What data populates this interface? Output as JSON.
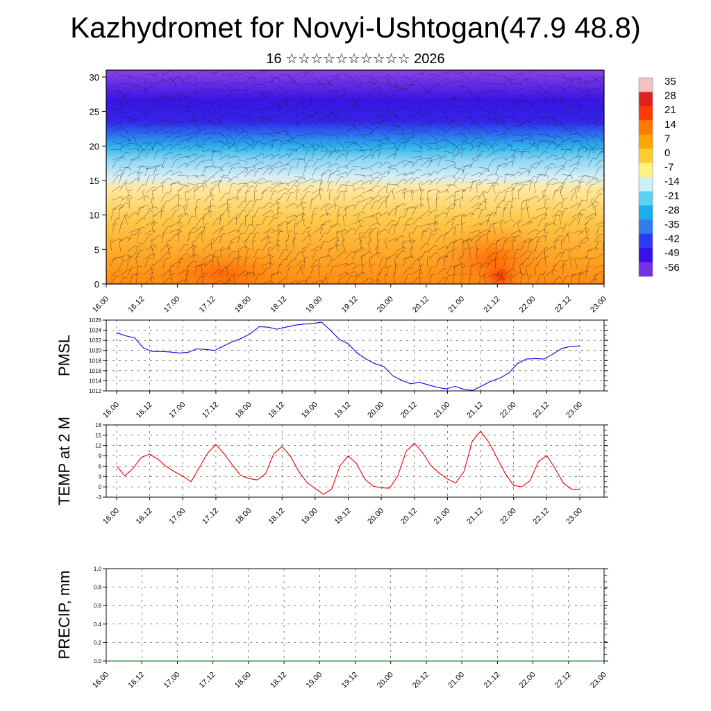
{
  "title": "Kazhydromet for Novyi-Ushtogan(47.9 48.8)",
  "subtitle": "16 ☆☆☆☆☆☆☆☆☆☆ 2026",
  "chart_data": [
    {
      "type": "heatmap",
      "name": "temperature-wind-cross-section",
      "x_tick_labels": [
        "16.00",
        "16.12",
        "17.00",
        "17.12",
        "18.00",
        "18.12",
        "19.00",
        "19.12",
        "20.00",
        "20.12",
        "21.00",
        "21.12",
        "22.00",
        "22.12",
        "23.00"
      ],
      "y_ticks": [
        0,
        5,
        10,
        15,
        20,
        25,
        30
      ],
      "ylim": [
        0,
        31
      ],
      "colorbar_labels": [
        "35",
        "28",
        "21",
        "14",
        "7",
        "0",
        "-7",
        "-14",
        "-21",
        "-28",
        "-35",
        "-42",
        "-49",
        "-56"
      ],
      "colorbar_colors": [
        "#f4c2c2",
        "#e02020",
        "#ff3a00",
        "#ff7a00",
        "#ffa500",
        "#ffcc30",
        "#fff280",
        "#c8f0ff",
        "#5bd2f5",
        "#1aaeeb",
        "#2f7bef",
        "#2e3af0",
        "#3a10e8",
        "#7a30e6"
      ],
      "layers_description_levels": [
        0,
        5,
        10,
        15,
        20,
        25,
        30
      ],
      "overlay": "wind barbs"
    },
    {
      "type": "line",
      "name": "pmsl",
      "ylabel": "PMSL",
      "ylim": [
        1012,
        1026
      ],
      "y_ticks": [
        1012,
        1014,
        1016,
        1018,
        1020,
        1022,
        1024,
        1026
      ],
      "x_tick_labels": [
        "16.00",
        "16.12",
        "17.00",
        "17.12",
        "18.00",
        "18.12",
        "19.00",
        "19.12",
        "20.00",
        "20.12",
        "21.00",
        "21.12",
        "22.00",
        "22.12",
        "23.00"
      ],
      "color": "#0000ee",
      "series": [
        {
          "name": "PMSL",
          "values": [
            1023.5,
            1022.9,
            1022.5,
            1020.5,
            1019.8,
            1019.8,
            1019.7,
            1019.5,
            1019.6,
            1020.3,
            1020.2,
            1020.0,
            1020.9,
            1021.7,
            1022.4,
            1023.3,
            1024.7,
            1024.6,
            1024.2,
            1024.6,
            1025.0,
            1025.2,
            1025.3,
            1025.6,
            1024.0,
            1022.2,
            1021.3,
            1019.5,
            1018.3,
            1017.4,
            1016.8,
            1015.0,
            1014.1,
            1013.4,
            1013.7,
            1013.2,
            1012.7,
            1012.4,
            1012.9,
            1012.3,
            1012.1,
            1013.0,
            1013.9,
            1014.5,
            1015.5,
            1017.4,
            1018.3,
            1018.4,
            1018.3,
            1019.3,
            1020.4,
            1020.8,
            1020.9
          ]
        }
      ]
    },
    {
      "type": "line",
      "name": "temp-2m",
      "ylabel": "TEMP at 2 M",
      "ylim": [
        -3,
        18
      ],
      "y_ticks": [
        -3,
        0,
        3,
        6,
        9,
        12,
        15,
        18
      ],
      "x_tick_labels": [
        "16.00",
        "16.12",
        "17.00",
        "17.12",
        "18.00",
        "18.12",
        "19.00",
        "19.12",
        "20.00",
        "20.12",
        "21.00",
        "21.12",
        "22.00",
        "22.12",
        "23.00"
      ],
      "color": "#ee0000",
      "series": [
        {
          "name": "TEMP",
          "values": [
            6.0,
            3.2,
            5.4,
            8.6,
            9.5,
            8.0,
            5.9,
            4.4,
            3.1,
            1.5,
            5.6,
            9.8,
            12.3,
            9.6,
            6.3,
            3.3,
            2.4,
            2.0,
            3.8,
            9.6,
            11.7,
            9.0,
            4.6,
            1.3,
            -0.5,
            -2.2,
            -0.7,
            6.1,
            9.0,
            6.8,
            2.3,
            0.2,
            -0.3,
            -0.4,
            3.2,
            10.3,
            12.7,
            9.9,
            6.2,
            4.0,
            2.3,
            1.1,
            4.5,
            13.3,
            16.2,
            13.0,
            8.4,
            3.8,
            0.4,
            0.0,
            1.8,
            7.3,
            9.1,
            5.4,
            1.1,
            -0.7,
            -0.8
          ]
        }
      ]
    },
    {
      "type": "line",
      "name": "precip",
      "ylabel": "PRECIP, mm",
      "ylim": [
        0.0,
        1.0
      ],
      "y_ticks": [
        "0.0",
        "0.2",
        "0.4",
        "0.6",
        "0.8",
        "1.0"
      ],
      "x_tick_labels": [
        "16.00",
        "16.12",
        "17.00",
        "17.12",
        "18.00",
        "18.12",
        "19.00",
        "19.12",
        "20.00",
        "20.12",
        "21.00",
        "21.12",
        "22.00",
        "22.12",
        "23.00"
      ],
      "color": "#006600",
      "series": [
        {
          "name": "PRECIP",
          "values": [
            0,
            0,
            0,
            0,
            0,
            0,
            0,
            0,
            0,
            0,
            0,
            0,
            0,
            0,
            0
          ]
        }
      ]
    }
  ]
}
